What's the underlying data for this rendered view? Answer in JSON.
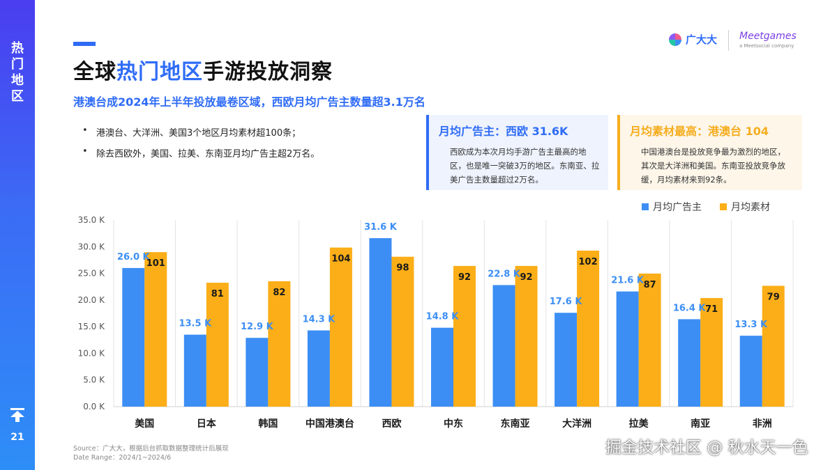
{
  "sidebar": {
    "title_chars": [
      "热",
      "门",
      "地",
      "区"
    ],
    "page_number": "21",
    "up_icon": "arrow-up-to-line-icon"
  },
  "header": {
    "title_pre": "全球",
    "title_highlight": "热门地区",
    "title_post": "手游投放洞察",
    "subtitle": "港澳台成2024年上半年投放最卷区域，西欧月均广告主数量超3.1万名"
  },
  "brand": {
    "logo_name": "广大大",
    "partner_name": "Meetgames",
    "partner_sub": "a Meetsocial company"
  },
  "bullets": [
    "港澳台、大洋洲、美国3个地区月均素材超100条；",
    "除去西欧外，美国、拉美、东南亚月均广告主超2万名。"
  ],
  "cards": [
    {
      "title": "月均广告主：西欧 31.6K",
      "body": "西欧成为本次月均手游广告主最高的地区，也是唯一突破3万的地区。东南亚、拉美广告主数量超过2万名。"
    },
    {
      "title": "月均素材最高：港澳台 104",
      "body": "中国港澳台是投放竞争最为激烈的地区，其次是大洋洲和美国。东南亚投放竞争放缓，月均素材来到92条。"
    }
  ],
  "footer": {
    "source": "Source：广大大，根据后台抓取数据整理统计后展现",
    "date_range": "Date Range：2024/1~2024/6",
    "watermark": "掘金技术社区 @ 秋水天一色"
  },
  "colors": {
    "blue": "#3c8ef4",
    "orange": "#fbae17",
    "accent": "#2f6cf6"
  },
  "chart_data": {
    "type": "bar",
    "categories": [
      "美国",
      "日本",
      "韩国",
      "中国港澳台",
      "西欧",
      "中东",
      "东南亚",
      "大洋洲",
      "拉美",
      "南亚",
      "非洲"
    ],
    "series": [
      {
        "name": "月均广告主",
        "values": [
          26.0,
          13.5,
          12.9,
          14.3,
          31.6,
          14.8,
          22.8,
          17.6,
          21.6,
          16.4,
          13.3
        ],
        "labels": [
          "26.0 K",
          "13.5 K",
          "12.9 K",
          "14.3 K",
          "31.6 K",
          "14.8 K",
          "22.8 K",
          "17.6 K",
          "21.6 K",
          "16.4 K",
          "13.3 K"
        ]
      },
      {
        "name": "月均素材",
        "values": [
          101,
          81,
          82,
          104,
          98,
          92,
          92,
          102,
          87,
          71,
          79
        ],
        "labels": [
          "101",
          "81",
          "82",
          "104",
          "98",
          "92",
          "92",
          "102",
          "87",
          "71",
          "79"
        ]
      }
    ],
    "ylim": [
      0,
      35
    ],
    "yticks": [
      "0.0 K",
      "5.0 K",
      "10.0 K",
      "15.0 K",
      "20.0 K",
      "25.0 K",
      "30.0 K",
      "35.0 K"
    ],
    "secondary_ylim": [
      0,
      122
    ],
    "grid": "vertical separators",
    "legend": "top-right"
  }
}
